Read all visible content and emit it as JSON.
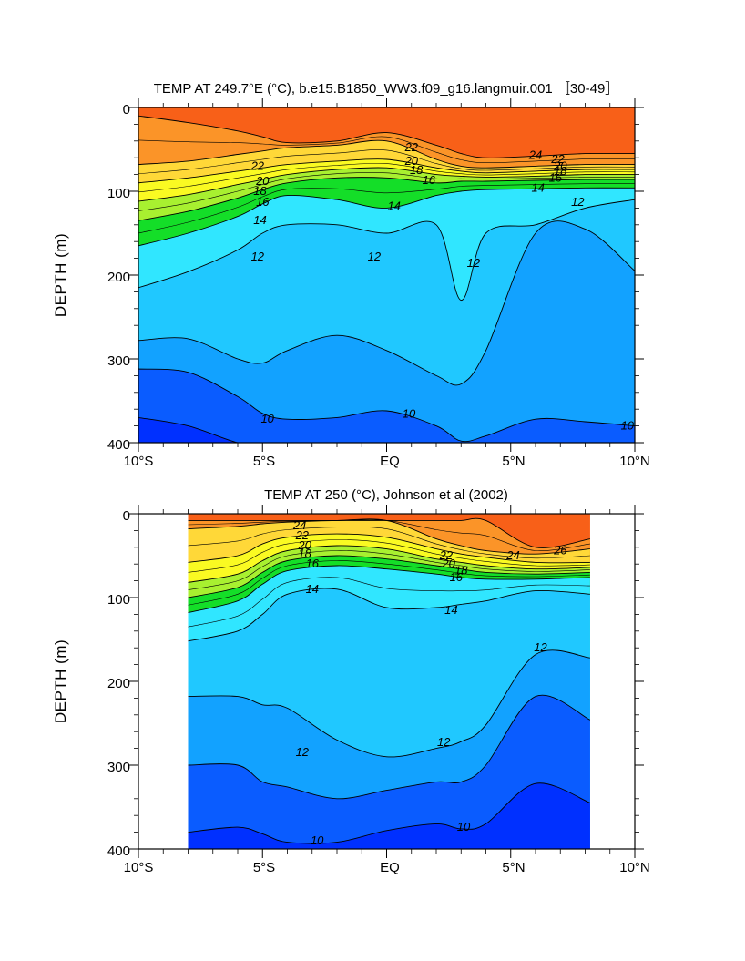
{
  "chart_data": [
    {
      "type": "contour",
      "title": "TEMP AT 249.7°E (°C), b.e15.B1850_WW3.f09_g16.langmuir.001 〚30-49〛",
      "ylabel": "DEPTH (m)",
      "xlabel": "",
      "xlim": [
        -10,
        10
      ],
      "ylim": [
        400,
        0
      ],
      "xticks": [
        "10°S",
        "5°S",
        "EQ",
        "5°N",
        "10°N"
      ],
      "xtick_values": [
        -10,
        -5,
        0,
        5,
        10
      ],
      "yticks": [
        "0",
        "100",
        "200",
        "300",
        "400"
      ],
      "ytick_values": [
        0,
        100,
        200,
        300,
        400
      ],
      "data_extent": [
        -10,
        10
      ],
      "x": [
        -10,
        -8,
        -6,
        -5,
        -4,
        -2,
        0,
        2,
        3,
        4,
        6,
        8,
        10
      ],
      "contours": [
        {
          "value": 24,
          "depth": [
            10,
            18,
            28,
            35,
            42,
            40,
            30,
            45,
            55,
            60,
            58,
            55,
            55
          ]
        },
        {
          "value": 22,
          "depth": [
            68,
            64,
            56,
            52,
            48,
            45,
            40,
            62,
            70,
            72,
            70,
            68,
            68
          ]
        },
        {
          "value": 20,
          "depth": [
            90,
            84,
            76,
            72,
            68,
            64,
            62,
            72,
            76,
            78,
            76,
            74,
            74
          ]
        },
        {
          "value": 18,
          "depth": [
            112,
            104,
            92,
            86,
            80,
            74,
            72,
            80,
            82,
            83,
            82,
            80,
            80
          ]
        },
        {
          "value": 16,
          "depth": [
            135,
            124,
            108,
            98,
            90,
            84,
            84,
            90,
            88,
            88,
            87,
            86,
            86
          ]
        },
        {
          "value": 14,
          "depth": [
            165,
            150,
            130,
            115,
            105,
            110,
            120,
            105,
            100,
            98,
            97,
            96,
            96
          ]
        },
        {
          "value": 12,
          "depth": [
            215,
            196,
            170,
            150,
            140,
            140,
            150,
            140,
            230,
            150,
            140,
            120,
            110
          ]
        },
        {
          "value": 11,
          "depth": [
            278,
            276,
            300,
            305,
            290,
            272,
            290,
            320,
            330,
            290,
            150,
            145,
            195
          ]
        },
        {
          "value": 10,
          "depth": [
            312,
            316,
            345,
            365,
            372,
            370,
            362,
            380,
            398,
            392,
            372,
            375,
            380
          ]
        },
        {
          "value": 9,
          "depth": [
            370,
            380,
            400,
            400,
            400,
            400,
            400,
            400,
            400,
            400,
            400,
            400,
            400
          ]
        }
      ],
      "contour_labels": [
        {
          "text": "22",
          "x": -5.2,
          "y": 70
        },
        {
          "text": "20",
          "x": -5.0,
          "y": 88
        },
        {
          "text": "18",
          "x": -5.1,
          "y": 100
        },
        {
          "text": "16",
          "x": -5.0,
          "y": 113
        },
        {
          "text": "14",
          "x": -5.1,
          "y": 135
        },
        {
          "text": "12",
          "x": -5.2,
          "y": 178
        },
        {
          "text": "22",
          "x": 1.0,
          "y": 48
        },
        {
          "text": "20",
          "x": 1.0,
          "y": 64
        },
        {
          "text": "18",
          "x": 1.2,
          "y": 75
        },
        {
          "text": "16",
          "x": 1.7,
          "y": 87
        },
        {
          "text": "14",
          "x": 0.3,
          "y": 118
        },
        {
          "text": "12",
          "x": -0.5,
          "y": 178
        },
        {
          "text": "12",
          "x": 3.5,
          "y": 186
        },
        {
          "text": "24",
          "x": 6.0,
          "y": 57
        },
        {
          "text": "22",
          "x": 6.9,
          "y": 62
        },
        {
          "text": "20",
          "x": 7.0,
          "y": 70
        },
        {
          "text": "18",
          "x": 7.0,
          "y": 76
        },
        {
          "text": "16",
          "x": 6.8,
          "y": 84
        },
        {
          "text": "14",
          "x": 6.1,
          "y": 96
        },
        {
          "text": "12",
          "x": 7.7,
          "y": 113
        },
        {
          "text": "10",
          "x": -4.8,
          "y": 372
        },
        {
          "text": "10",
          "x": 0.9,
          "y": 366
        },
        {
          "text": "10",
          "x": 9.7,
          "y": 380
        }
      ]
    },
    {
      "type": "contour",
      "title": "TEMP AT 250 (°C), Johnson et al (2002)",
      "ylabel": "DEPTH (m)",
      "xlabel": "",
      "xlim": [
        -10,
        10
      ],
      "ylim": [
        400,
        0
      ],
      "xticks": [
        "10°S",
        "5°S",
        "EQ",
        "5°N",
        "10°N"
      ],
      "xtick_values": [
        -10,
        -5,
        0,
        5,
        10
      ],
      "yticks": [
        "0",
        "100",
        "200",
        "300",
        "400"
      ],
      "ytick_values": [
        0,
        100,
        200,
        300,
        400
      ],
      "data_extent": [
        -8,
        8.2
      ],
      "x": [
        -8,
        -6,
        -5,
        -4,
        -2,
        0,
        2,
        3,
        4,
        6,
        8.2
      ],
      "contours": [
        {
          "value": 26,
          "depth": [
            8,
            8,
            8,
            8,
            8,
            8,
            8,
            8,
            8,
            40,
            30
          ]
        },
        {
          "value": 24,
          "depth": [
            18,
            15,
            12,
            10,
            8,
            8,
            30,
            38,
            44,
            48,
            42
          ]
        },
        {
          "value": 22,
          "depth": [
            58,
            50,
            36,
            28,
            24,
            28,
            42,
            48,
            52,
            58,
            58
          ]
        },
        {
          "value": 20,
          "depth": [
            82,
            72,
            56,
            44,
            38,
            42,
            54,
            58,
            62,
            66,
            64
          ]
        },
        {
          "value": 18,
          "depth": [
            100,
            88,
            70,
            56,
            50,
            54,
            62,
            66,
            70,
            72,
            70
          ]
        },
        {
          "value": 16,
          "depth": [
            118,
            104,
            84,
            68,
            62,
            66,
            72,
            76,
            78,
            78,
            76
          ]
        },
        {
          "value": 14,
          "depth": [
            152,
            140,
            120,
            96,
            90,
            112,
            112,
            108,
            104,
            92,
            96
          ]
        },
        {
          "value": 13,
          "depth": [
            218,
            218,
            228,
            232,
            270,
            290,
            280,
            272,
            252,
            168,
            172
          ]
        },
        {
          "value": 12,
          "depth": [
            300,
            300,
            320,
            326,
            340,
            330,
            320,
            320,
            300,
            218,
            246
          ]
        },
        {
          "value": 11,
          "depth": [
            380,
            374,
            382,
            392,
            392,
            378,
            370,
            376,
            370,
            322,
            345
          ]
        }
      ],
      "contour_labels": [
        {
          "text": "24",
          "x": -3.5,
          "y": 14
        },
        {
          "text": "22",
          "x": -3.4,
          "y": 26
        },
        {
          "text": "20",
          "x": -3.3,
          "y": 38
        },
        {
          "text": "18",
          "x": -3.3,
          "y": 48
        },
        {
          "text": "16",
          "x": -3.0,
          "y": 60
        },
        {
          "text": "14",
          "x": -3.0,
          "y": 90
        },
        {
          "text": "22",
          "x": 2.4,
          "y": 50
        },
        {
          "text": "20",
          "x": 2.5,
          "y": 60
        },
        {
          "text": "18",
          "x": 3.0,
          "y": 68
        },
        {
          "text": "16",
          "x": 2.8,
          "y": 76
        },
        {
          "text": "14",
          "x": 2.6,
          "y": 115
        },
        {
          "text": "12",
          "x": 6.2,
          "y": 160
        },
        {
          "text": "24",
          "x": 5.1,
          "y": 50
        },
        {
          "text": "26",
          "x": 7.0,
          "y": 44
        },
        {
          "text": "12",
          "x": -3.4,
          "y": 285
        },
        {
          "text": "12",
          "x": 2.3,
          "y": 273
        },
        {
          "text": "10",
          "x": -2.8,
          "y": 390
        },
        {
          "text": "10",
          "x": 3.1,
          "y": 374
        }
      ]
    }
  ],
  "colors": {
    "background": "#ffffff",
    "palette": [
      "#0030ff",
      "#0a5cff",
      "#0f80ff",
      "#12a2ff",
      "#20c8ff",
      "#30e6ff",
      "#1cc870",
      "#14de28",
      "#a8f030",
      "#fafa22",
      "#ffd838",
      "#fdb23c",
      "#fb9428",
      "#f86018"
    ]
  }
}
